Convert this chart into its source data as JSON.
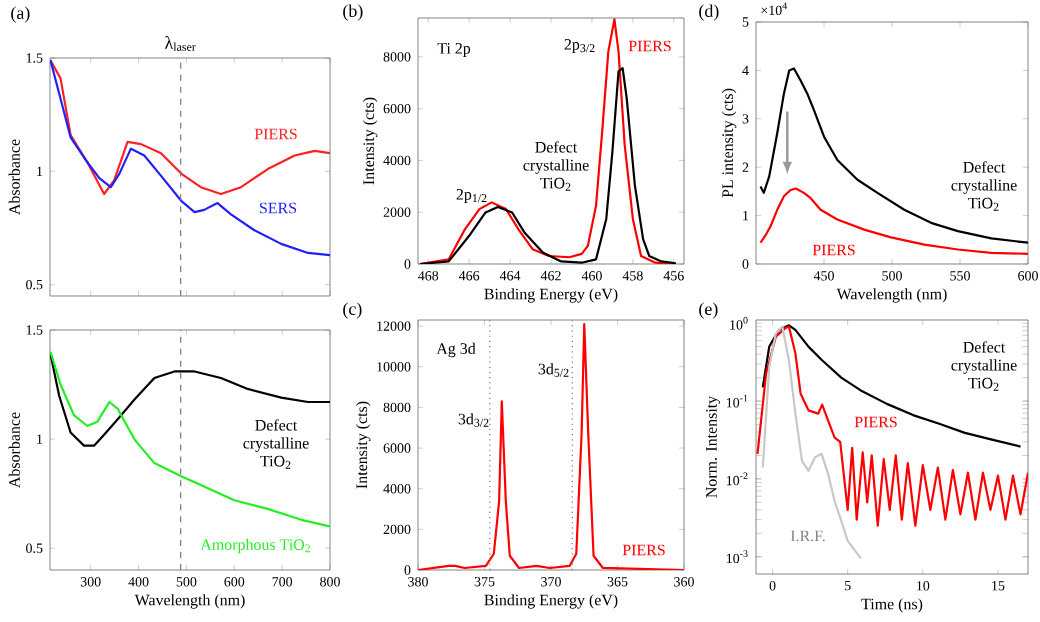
{
  "chart_data": [
    {
      "type": "line",
      "xlim": [
        215,
        800
      ],
      "ylim": [
        0.45,
        1.5
      ],
      "xticks": [
        300,
        400,
        500,
        600,
        700,
        800
      ],
      "yticks": [
        0.5,
        1,
        1.5
      ],
      "tick_labels": "y",
      "ylabel": "Absorbance",
      "series": [
        {
          "color": "#ff2020",
          "x": [
            216,
            237,
            258,
            293,
            328,
            349,
            377,
            405,
            447,
            489,
            530,
            572,
            614,
            670,
            726,
            768,
            800
          ],
          "values": [
            1.49,
            1.41,
            1.16,
            1.04,
            0.9,
            0.96,
            1.13,
            1.12,
            1.08,
            0.99,
            0.93,
            0.9,
            0.93,
            1.01,
            1.07,
            1.09,
            1.08
          ]
        },
        {
          "color": "#2020ff",
          "x": [
            216,
            258,
            293,
            318,
            342,
            360,
            384,
            412,
            447,
            489,
            517,
            537,
            565,
            593,
            642,
            698,
            754,
            800
          ],
          "values": [
            1.49,
            1.15,
            1.04,
            0.97,
            0.93,
            0.99,
            1.1,
            1.07,
            0.98,
            0.87,
            0.82,
            0.83,
            0.86,
            0.81,
            0.74,
            0.68,
            0.64,
            0.63
          ]
        }
      ],
      "ref_lines": [
        {
          "axis": "x",
          "value": 488,
          "label": "λ$_{laser}$",
          "line_style": "dashed",
          "color": "#777777"
        }
      ],
      "annotations": [
        "(a)",
        "PIERS",
        "SERS"
      ]
    },
    {
      "type": "line",
      "xlim": [
        215,
        800
      ],
      "ylim": [
        0.4,
        1.5
      ],
      "xticks": [
        300,
        400,
        500,
        600,
        700,
        800
      ],
      "yticks": [
        0.5,
        1,
        1.5
      ],
      "xlabel": "Wavelength (nm)",
      "ylabel": "Absorbance",
      "series": [
        {
          "color": "#000000",
          "x": [
            216,
            234,
            258,
            286,
            307,
            328,
            356,
            391,
            433,
            475,
            517,
            572,
            628,
            698,
            754,
            800
          ],
          "values": [
            1.39,
            1.2,
            1.03,
            0.97,
            0.97,
            1.02,
            1.09,
            1.18,
            1.28,
            1.31,
            1.31,
            1.28,
            1.23,
            1.19,
            1.17,
            1.17
          ]
        },
        {
          "color": "#22ee22",
          "x": [
            216,
            237,
            265,
            293,
            314,
            339,
            356,
            391,
            433,
            489,
            530,
            600,
            670,
            740,
            800
          ],
          "values": [
            1.4,
            1.25,
            1.11,
            1.06,
            1.08,
            1.17,
            1.14,
            1.0,
            0.89,
            0.83,
            0.79,
            0.72,
            0.68,
            0.63,
            0.6
          ]
        }
      ],
      "ref_lines": [
        {
          "axis": "x",
          "value": 488,
          "line_style": "dashed",
          "color": "#777777"
        }
      ],
      "annotations": [
        "Defect crystalline TiO$_{2}$",
        "Amorphous TiO$_{2}$"
      ]
    },
    {
      "type": "line",
      "xlim": [
        468.5,
        455.5
      ],
      "ylim": [
        0,
        9500
      ],
      "xticks": [
        468,
        466,
        464,
        462,
        460,
        458,
        456
      ],
      "yticks": [
        0,
        2000,
        4000,
        6000,
        8000
      ],
      "xlabel": "Binding Energy (eV)",
      "ylabel": "Intensity (cts)",
      "series": [
        {
          "color": "#ff0000",
          "x": [
            468.4,
            467.0,
            466.2,
            465.5,
            464.9,
            464.2,
            463.6,
            462.9,
            462.1,
            461.1,
            460.5,
            460.2,
            459.8,
            459.5,
            459.2,
            458.9,
            458.7,
            458.4,
            458.0,
            457.6,
            456.9,
            455.9
          ],
          "values": [
            0,
            180,
            1350,
            2120,
            2380,
            2120,
            1350,
            570,
            310,
            260,
            390,
            700,
            2250,
            5100,
            8200,
            9450,
            8200,
            4600,
            1740,
            310,
            50,
            0
          ]
        },
        {
          "color": "#000000",
          "x": [
            468.4,
            467.0,
            466.0,
            465.2,
            464.6,
            463.9,
            463.3,
            462.4,
            461.5,
            460.5,
            459.8,
            459.3,
            459.0,
            458.7,
            458.5,
            458.3,
            457.9,
            457.5,
            457.2,
            456.6,
            455.9
          ],
          "values": [
            0,
            100,
            1090,
            1990,
            2200,
            1990,
            1220,
            440,
            100,
            50,
            180,
            1740,
            4330,
            7440,
            7560,
            6400,
            3030,
            960,
            310,
            100,
            30
          ]
        }
      ],
      "annotations": [
        "(b)",
        "Ti 2p",
        "2p$_{3/2}$",
        "PIERS",
        "2p$_{1/2}$",
        "Defect crystalline TiO$_{2}$"
      ]
    },
    {
      "type": "line",
      "xlim": [
        380,
        360
      ],
      "ylim": [
        0,
        12300
      ],
      "xticks": [
        380,
        375,
        370,
        365,
        360
      ],
      "yticks": [
        0,
        2000,
        4000,
        6000,
        8000,
        10000,
        12000
      ],
      "xlabel": "Binding Energy (eV)",
      "ylabel": "Intensity (cts)",
      "series": [
        {
          "color": "#ff0000",
          "x": [
            380,
            377.7,
            377.2,
            376.5,
            374.9,
            374.3,
            373.9,
            373.7,
            373.4,
            373.1,
            372.4,
            371.1,
            370.1,
            368.6,
            368.1,
            367.7,
            367.5,
            367.2,
            366.8,
            366.1,
            360
          ],
          "values": [
            0,
            200,
            200,
            100,
            200,
            800,
            3400,
            8300,
            3400,
            700,
            100,
            200,
            100,
            200,
            800,
            6700,
            12100,
            6700,
            700,
            100,
            0
          ]
        }
      ],
      "ref_lines": [
        {
          "axis": "x",
          "value": 374.6,
          "line_style": "dotted",
          "color": "#777777"
        },
        {
          "axis": "x",
          "value": 368.4,
          "line_style": "dotted",
          "color": "#777777"
        }
      ],
      "annotations": [
        "(c)",
        "Ag 3d",
        "3d$_{3/2}$",
        "3d$_{5/2}$",
        "PIERS"
      ]
    },
    {
      "type": "line",
      "xlim": [
        400,
        600
      ],
      "ylim": [
        0,
        5
      ],
      "xticks": [
        450,
        500,
        550,
        600
      ],
      "yticks": [
        0,
        1,
        2,
        3,
        4,
        5
      ],
      "xlabel": "Wavelength (nm)",
      "ylabel": "PL intensity (cts)",
      "series": [
        {
          "color": "#000000",
          "x": [
            403.3,
            405.7,
            409.7,
            415.6,
            420.5,
            424.4,
            427.9,
            432.8,
            437.7,
            442.6,
            450,
            459.8,
            474.6,
            489.3,
            509,
            528.7,
            548.4,
            573,
            600
          ],
          "values": [
            1.6,
            1.47,
            1.81,
            2.7,
            3.52,
            4.0,
            4.04,
            3.79,
            3.52,
            3.18,
            2.63,
            2.15,
            1.74,
            1.47,
            1.12,
            0.85,
            0.68,
            0.53,
            0.44
          ]
        },
        {
          "color": "#ff0000",
          "x": [
            403.3,
            406.7,
            410.7,
            415.6,
            420.5,
            425.4,
            429.3,
            435.2,
            440.2,
            447.5,
            459.8,
            479.5,
            499.2,
            523.8,
            548.4,
            573,
            600
          ],
          "values": [
            0.44,
            0.58,
            0.78,
            1.12,
            1.4,
            1.53,
            1.56,
            1.47,
            1.36,
            1.12,
            0.92,
            0.71,
            0.55,
            0.4,
            0.3,
            0.23,
            0.21
          ]
        }
      ],
      "annotations": [
        "(d)",
        "×10$^{4}$",
        "Defect crystalline TiO$_{2}$",
        "PIERS"
      ]
    },
    {
      "type": "line",
      "log": "y",
      "xlim": [
        -1.1,
        17
      ],
      "ylim": [
        0.0006,
        1.1
      ],
      "xticks": [
        0,
        5,
        10,
        15
      ],
      "yticks": [
        {
          "value": 0.001,
          "label": "10$^{-3}$"
        },
        {
          "value": 0.01,
          "label": "10$^{-2}$"
        },
        {
          "value": 0.1,
          "label": "10$^{-1}$"
        },
        {
          "value": 1,
          "label": "10$^{0}$"
        }
      ],
      "xlabel": "Time (ns)",
      "ylabel": "Norm. Intensity",
      "series": [
        {
          "color": "#000000",
          "x": [
            -0.65,
            -0.22,
            0.43,
            1.09,
            1.52,
            2.39,
            3.26,
            4.57,
            5.87,
            7.61,
            9.35,
            11.09,
            12.8,
            14.6,
            16.5
          ],
          "values": [
            0.15,
            0.5,
            0.82,
            0.94,
            0.82,
            0.5,
            0.34,
            0.2,
            0.137,
            0.092,
            0.066,
            0.051,
            0.039,
            0.032,
            0.026
          ]
        },
        {
          "color": "#ff0000",
          "x": [
            -1.0,
            -0.43,
            0.22,
            0.87,
            1.09,
            1.52,
            1.87,
            2.39,
            3.04,
            3.3,
            3.7,
            4.13,
            4.5,
            5,
            5.3,
            5.6,
            6,
            6.3,
            6.6,
            7,
            7.4,
            7.8,
            8.2,
            8.6,
            9,
            9.5,
            10,
            10.5,
            11,
            11.5,
            12,
            12.5,
            13,
            13.5,
            14,
            14.5,
            15,
            15.5,
            16,
            16.5,
            17
          ],
          "values": [
            0.021,
            0.225,
            0.67,
            0.87,
            0.905,
            0.41,
            0.124,
            0.076,
            0.069,
            0.09,
            0.056,
            0.034,
            0.03,
            0.004,
            0.025,
            0.003,
            0.022,
            0.005,
            0.02,
            0.0025,
            0.018,
            0.004,
            0.02,
            0.003,
            0.016,
            0.0025,
            0.015,
            0.004,
            0.014,
            0.003,
            0.013,
            0.0035,
            0.012,
            0.003,
            0.012,
            0.004,
            0.011,
            0.003,
            0.011,
            0.0035,
            0.012
          ]
        },
        {
          "color": "#c8c8c8",
          "x": [
            -0.65,
            -0.22,
            0.22,
            0.65,
            1.09,
            1.52,
            1.96,
            2.39,
            2.83,
            3.26,
            3.7,
            4.13,
            4.57,
            5.0,
            5.87
          ],
          "values": [
            0.014,
            0.275,
            0.74,
            0.905,
            0.335,
            0.069,
            0.017,
            0.0127,
            0.019,
            0.021,
            0.0115,
            0.0052,
            0.0029,
            0.0016,
            0.00095
          ]
        }
      ],
      "annotations": [
        "(e)",
        "Defect crystalline TiO$_{2}$",
        "PIERS",
        "I.R.F."
      ]
    }
  ]
}
